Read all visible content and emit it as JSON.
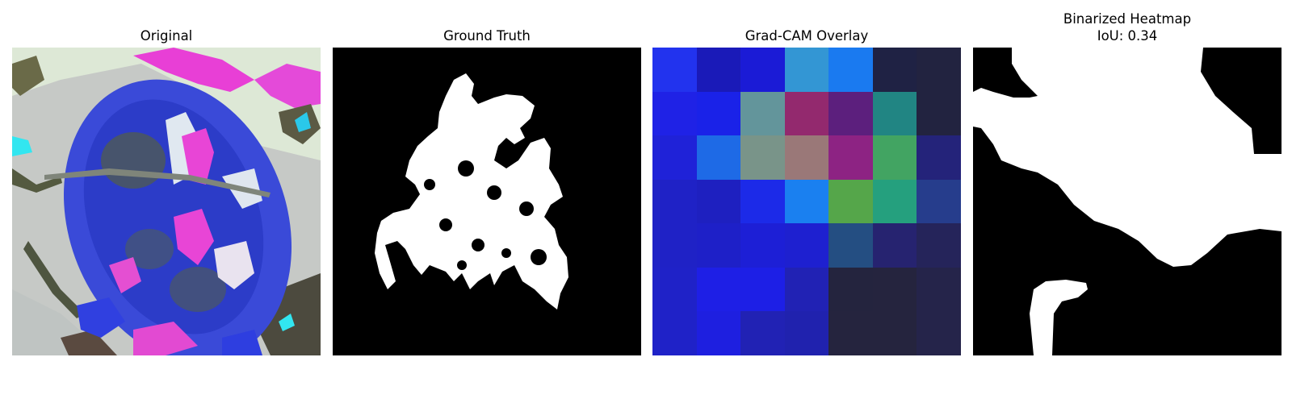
{
  "panels": [
    {
      "title": "Original"
    },
    {
      "title": "Ground Truth"
    },
    {
      "title": "Grad-CAM Overlay"
    },
    {
      "title": "Binarized Heatmap",
      "subtitle": "IoU: 0.34"
    }
  ],
  "gradcam_grid": [
    [
      "#2233ee",
      "#1a1ab8",
      "#1b1bd6",
      "#3396d4",
      "#1a7af0",
      "#1f2244",
      "#222340"
    ],
    [
      "#1f22e6",
      "#1a22e8",
      "#63959b",
      "#93296e",
      "#5c1f7d",
      "#218583",
      "#222340"
    ],
    [
      "#1f22d8",
      "#1e6ae6",
      "#799489",
      "#9a7878",
      "#8d2383",
      "#42a462",
      "#24237a"
    ],
    [
      "#1f22c6",
      "#1e20c0",
      "#1c2ae8",
      "#1a80f0",
      "#55a64a",
      "#25a07e",
      "#263d8c"
    ],
    [
      "#1f22c6",
      "#1e20c8",
      "#1d1fd6",
      "#1e20d0",
      "#244e82",
      "#262370",
      "#25245a"
    ],
    [
      "#1f22c8",
      "#1e1fe6",
      "#1d1fe6",
      "#2122b4",
      "#24243e",
      "#25243e",
      "#25244a"
    ],
    [
      "#1f22c8",
      "#1e1fe0",
      "#2122b4",
      "#2022ae",
      "#25243e",
      "#25243e",
      "#25244a"
    ]
  ]
}
